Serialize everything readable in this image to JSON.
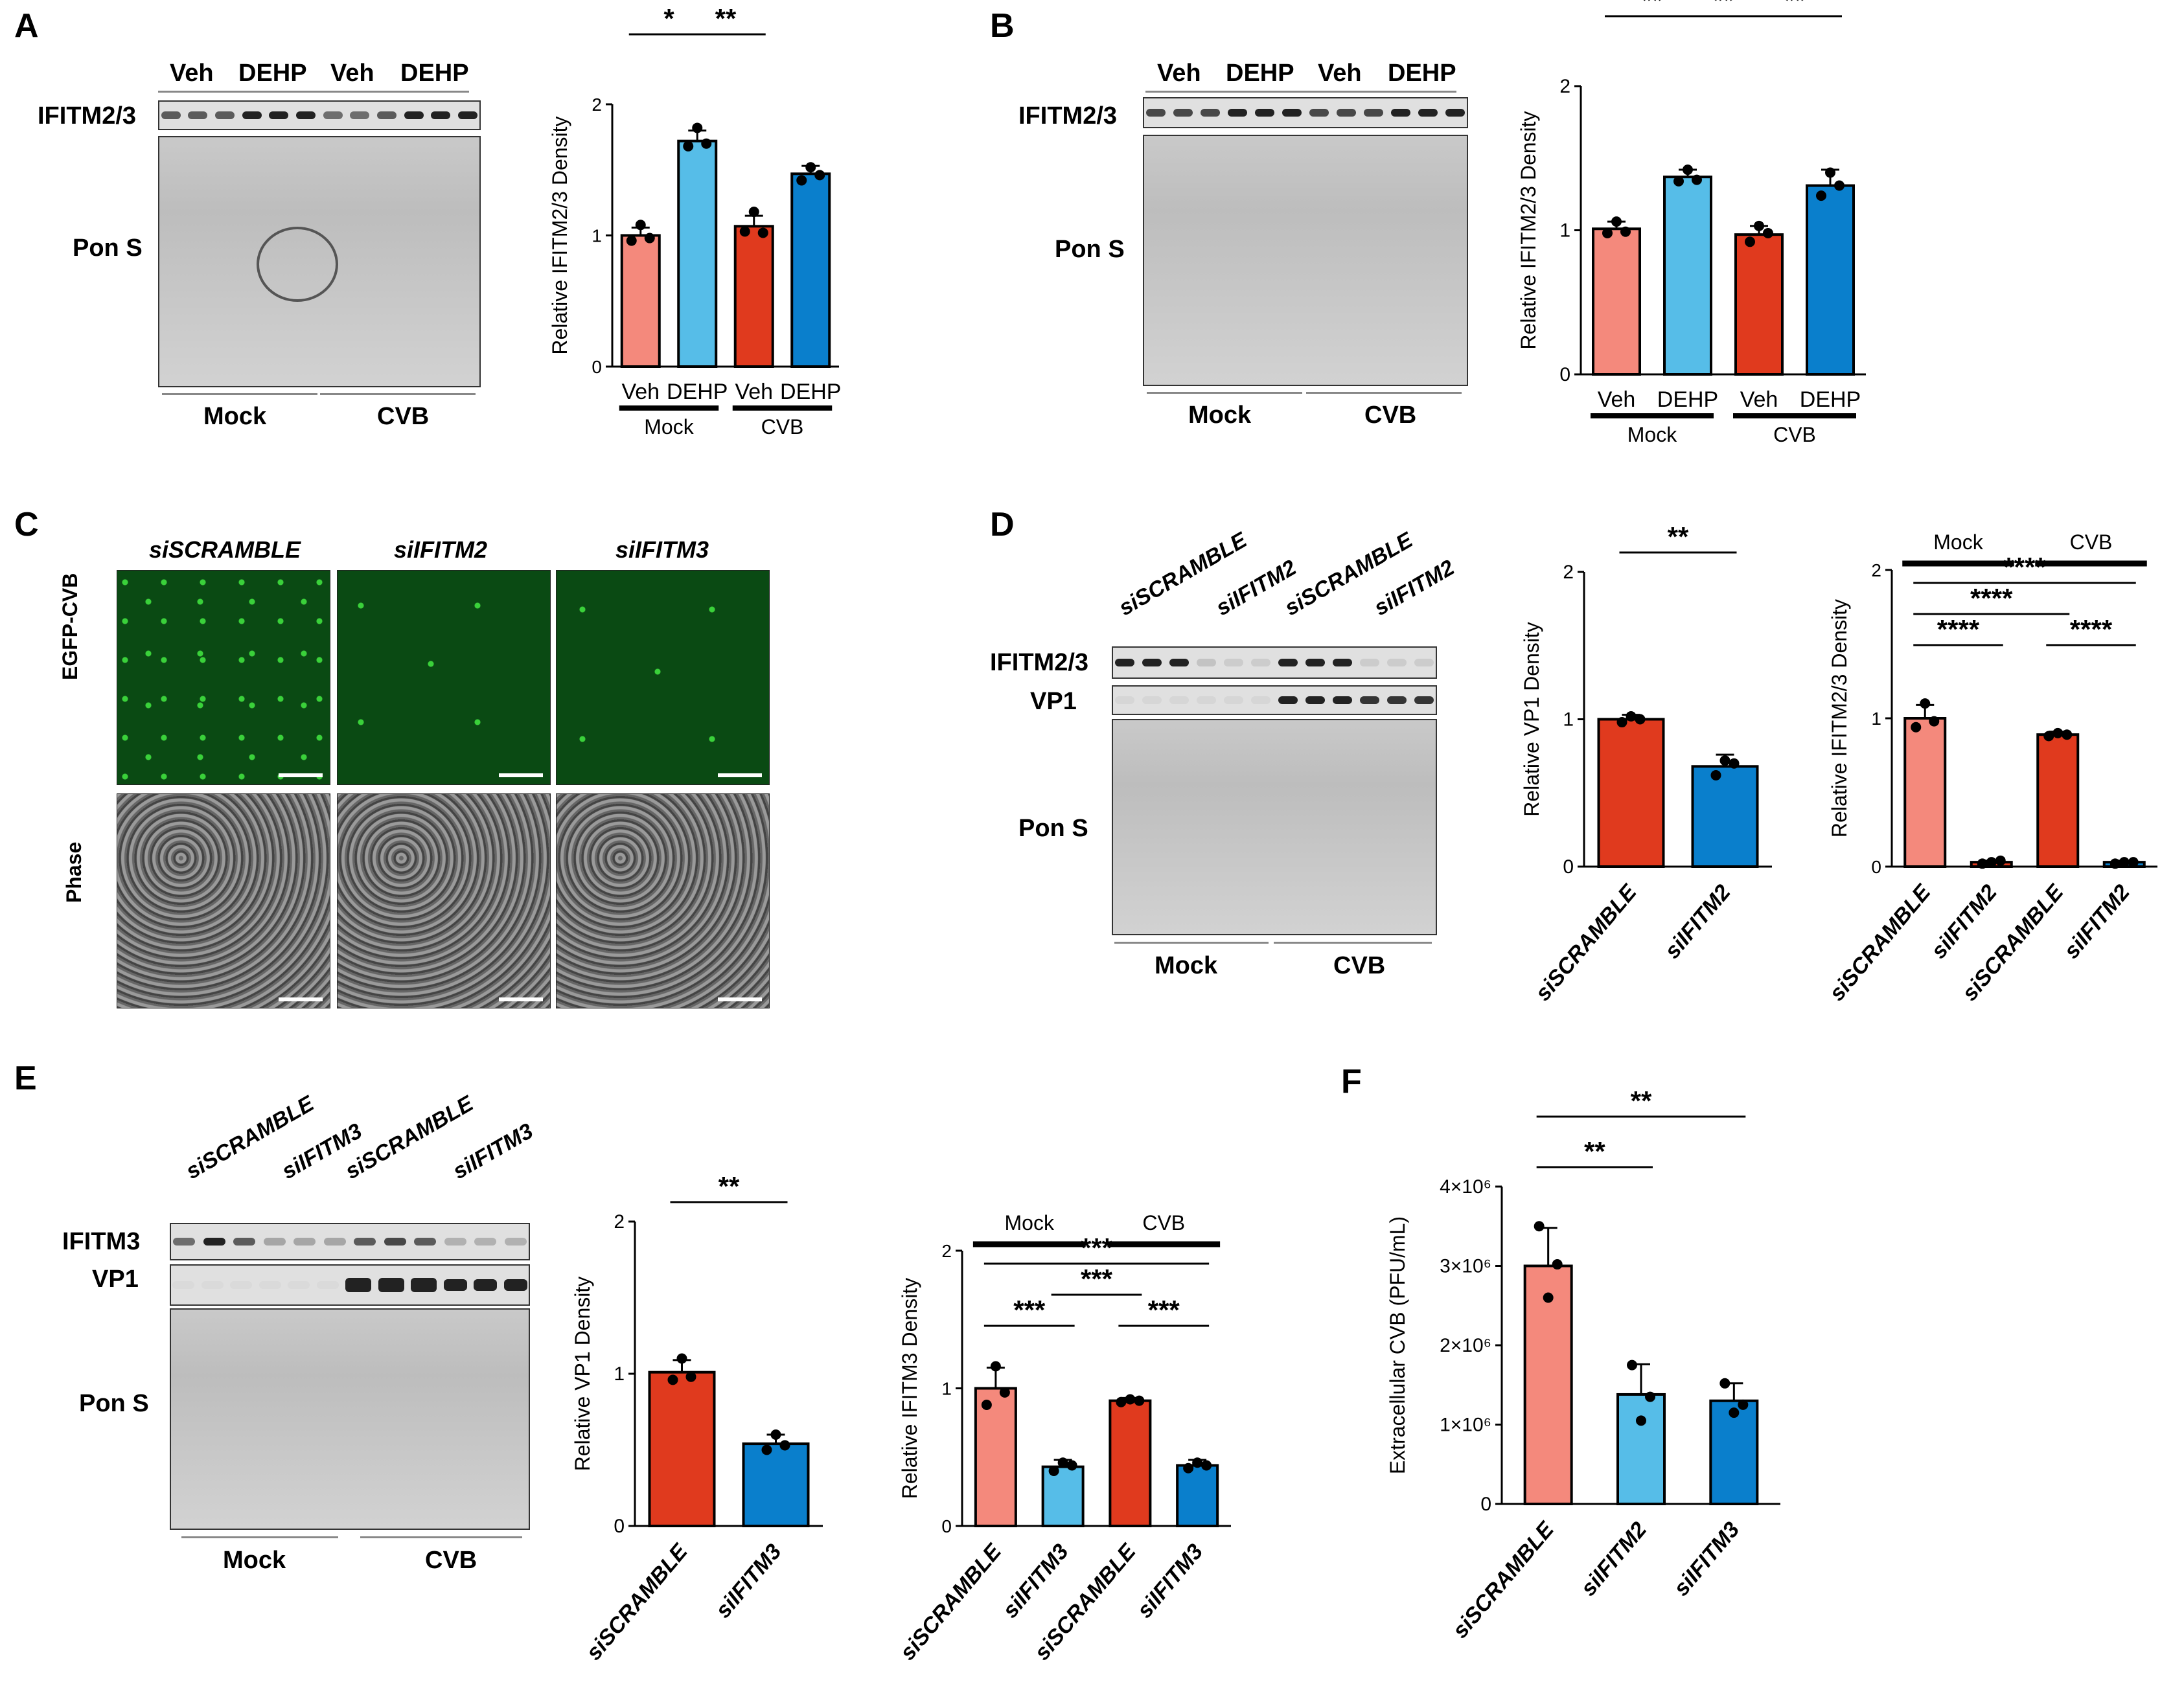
{
  "panels": {
    "A": {
      "letter": "A"
    },
    "B": {
      "letter": "B"
    },
    "C": {
      "letter": "C"
    },
    "D": {
      "letter": "D"
    },
    "E": {
      "letter": "E"
    },
    "F": {
      "letter": "F"
    }
  },
  "blots": {
    "A": {
      "top_labels": [
        "Veh",
        "DEHP",
        "Veh",
        "DEHP"
      ],
      "rows": [
        "IFITM2/3",
        "Pon S"
      ],
      "bottom": [
        "Mock",
        "CVB"
      ]
    },
    "B": {
      "top_labels": [
        "Veh",
        "DEHP",
        "Veh",
        "DEHP"
      ],
      "rows": [
        "IFITM2/3",
        "Pon S"
      ],
      "bottom": [
        "Mock",
        "CVB"
      ]
    },
    "D": {
      "top_labels": [
        "siSCRAMBLE",
        "siIFITM2",
        "siSCRAMBLE",
        "siIFITM2"
      ],
      "rows": [
        "IFITM2/3",
        "VP1",
        "Pon S"
      ],
      "bottom": [
        "Mock",
        "CVB"
      ]
    },
    "E": {
      "top_labels": [
        "siSCRAMBLE",
        "siIFITM3",
        "siSCRAMBLE",
        "siIFITM3"
      ],
      "rows": [
        "IFITM3",
        "VP1",
        "Pon S"
      ],
      "bottom": [
        "Mock",
        "CVB"
      ]
    }
  },
  "microscopy": {
    "columns": [
      "siSCRAMBLE",
      "siIFITM2",
      "siIFITM3"
    ],
    "rows": [
      "EGFP-CVB",
      "Phase"
    ]
  },
  "colors": {
    "veh_mock": "#f4897c",
    "dehp_mock": "#56bde8",
    "veh_cvb": "#e03a1e",
    "dehp_cvb": "#0a7fcc",
    "si_scr_mock": "#f4897c",
    "si_scr_cvb": "#e03a1e",
    "si_kd": "#0a7fcc",
    "si_kd_light": "#56bde8"
  },
  "chart_data": [
    {
      "id": "A",
      "type": "bar",
      "categories": [
        "Veh",
        "DEHP",
        "Veh",
        "DEHP"
      ],
      "groups": [
        "Mock",
        "CVB"
      ],
      "values": [
        1.0,
        1.72,
        1.07,
        1.47
      ],
      "errors": [
        0.06,
        0.08,
        0.08,
        0.06
      ],
      "points": [
        [
          0.96,
          1.08,
          0.98
        ],
        [
          1.68,
          1.82,
          1.7
        ],
        [
          1.03,
          1.18,
          1.02
        ],
        [
          1.42,
          1.52,
          1.46
        ]
      ],
      "ylabel": "Relative IFITM2/3 Density",
      "ylim": [
        0,
        2
      ],
      "yticks": [
        0,
        1,
        2
      ],
      "colors": [
        "#f4897c",
        "#56bde8",
        "#e03a1e",
        "#0a7fcc"
      ],
      "sig": [
        {
          "from": 0,
          "to": 3,
          "label": "****",
          "level": 3
        },
        {
          "from": 0,
          "to": 1,
          "label": "*",
          "level": 2
        },
        {
          "from": 1,
          "to": 2,
          "label": "**",
          "level": 2
        }
      ]
    },
    {
      "id": "B",
      "type": "bar",
      "categories": [
        "Veh",
        "DEHP",
        "Veh",
        "DEHP"
      ],
      "groups": [
        "Mock",
        "CVB"
      ],
      "values": [
        1.01,
        1.37,
        0.97,
        1.31
      ],
      "errors": [
        0.05,
        0.05,
        0.06,
        0.11
      ],
      "points": [
        [
          0.98,
          1.06,
          0.99
        ],
        [
          1.34,
          1.42,
          1.35
        ],
        [
          0.92,
          1.03,
          0.98
        ],
        [
          1.24,
          1.4,
          1.31
        ]
      ],
      "ylabel": "Relative IFITM2/3 Density",
      "ylim": [
        0,
        2
      ],
      "yticks": [
        0,
        1,
        2
      ],
      "colors": [
        "#f4897c",
        "#56bde8",
        "#e03a1e",
        "#0a7fcc"
      ],
      "sig": [
        {
          "from": 0,
          "to": 3,
          "label": "**",
          "level": 3
        },
        {
          "from": 0,
          "to": 1,
          "label": "**",
          "level": 2
        },
        {
          "from": 1,
          "to": 2,
          "label": "**",
          "level": 2
        },
        {
          "from": 2,
          "to": 3,
          "label": "**",
          "level": 2
        }
      ]
    },
    {
      "id": "D1",
      "type": "bar",
      "categories": [
        "siSCRAMBLE",
        "siIFITM2"
      ],
      "values": [
        1.0,
        0.68
      ],
      "errors": [
        0.03,
        0.08
      ],
      "points": [
        [
          0.98,
          1.02,
          1.0
        ],
        [
          0.62,
          0.72,
          0.7
        ]
      ],
      "ylabel": "Relative VP1 Density",
      "ylim": [
        0,
        2
      ],
      "yticks": [
        0,
        1,
        2
      ],
      "colors": [
        "#e03a1e",
        "#0a7fcc"
      ],
      "sig": [
        {
          "from": 0,
          "to": 1,
          "label": "**",
          "level": 1
        }
      ]
    },
    {
      "id": "D2",
      "type": "bar",
      "categories": [
        "siSCRAMBLE",
        "siIFITM2",
        "siSCRAMBLE",
        "siIFITM2"
      ],
      "groups": [
        "Mock",
        "CVB"
      ],
      "values": [
        1.0,
        0.03,
        0.89,
        0.03
      ],
      "errors": [
        0.09,
        0.01,
        0.02,
        0.01
      ],
      "points": [
        [
          0.94,
          1.1,
          0.98
        ],
        [
          0.02,
          0.03,
          0.04
        ],
        [
          0.88,
          0.9,
          0.89
        ],
        [
          0.02,
          0.03,
          0.03
        ]
      ],
      "ylabel": "Relative IFITM2/3 Density",
      "ylim": [
        0,
        2
      ],
      "yticks": [
        0,
        1,
        2
      ],
      "colors": [
        "#f4897c",
        "#e03a1e",
        "#e03a1e",
        "#0a7fcc"
      ],
      "sig": [
        {
          "from": 0,
          "to": 3,
          "label": "****",
          "level": 3
        },
        {
          "from": 0,
          "to": 2,
          "label": "****",
          "level": 2
        },
        {
          "from": 0,
          "to": 1,
          "label": "****",
          "level": 1
        },
        {
          "from": 2,
          "to": 3,
          "label": "****",
          "level": 1
        }
      ]
    },
    {
      "id": "E1",
      "type": "bar",
      "categories": [
        "siSCRAMBLE",
        "siIFITM3"
      ],
      "values": [
        1.01,
        0.54
      ],
      "errors": [
        0.08,
        0.06
      ],
      "points": [
        [
          0.96,
          1.1,
          0.98
        ],
        [
          0.5,
          0.6,
          0.53
        ]
      ],
      "ylabel": "Relative VP1 Density",
      "ylim": [
        0,
        2
      ],
      "yticks": [
        0,
        1,
        2
      ],
      "colors": [
        "#e03a1e",
        "#0a7fcc"
      ],
      "sig": [
        {
          "from": 0,
          "to": 1,
          "label": "**",
          "level": 1
        }
      ]
    },
    {
      "id": "E2",
      "type": "bar",
      "categories": [
        "siSCRAMBLE",
        "siIFITM3",
        "siSCRAMBLE",
        "siIFITM3"
      ],
      "groups": [
        "Mock",
        "CVB"
      ],
      "values": [
        1.0,
        0.43,
        0.91,
        0.44
      ],
      "errors": [
        0.15,
        0.05,
        0.02,
        0.04
      ],
      "points": [
        [
          0.88,
          1.16,
          0.97
        ],
        [
          0.4,
          0.46,
          0.44
        ],
        [
          0.9,
          0.92,
          0.91
        ],
        [
          0.42,
          0.46,
          0.44
        ]
      ],
      "ylabel": "Relative IFITM3 Density",
      "ylim": [
        0,
        2
      ],
      "yticks": [
        0,
        1,
        2
      ],
      "colors": [
        "#f4897c",
        "#56bde8",
        "#e03a1e",
        "#0a7fcc"
      ],
      "sig": [
        {
          "from": 0,
          "to": 3,
          "label": "***",
          "level": 3
        },
        {
          "from": 1,
          "to": 2,
          "label": "***",
          "level": 2
        },
        {
          "from": 0,
          "to": 1,
          "label": "***",
          "level": 1
        },
        {
          "from": 2,
          "to": 3,
          "label": "***",
          "level": 1
        }
      ]
    },
    {
      "id": "F",
      "type": "bar",
      "categories": [
        "siSCRAMBLE",
        "siIFITM2",
        "siIFITM3"
      ],
      "values": [
        3000000,
        1380000,
        1300000
      ],
      "errors": [
        480000,
        380000,
        220000
      ],
      "points": [
        [
          3500000,
          2600000,
          3020000
        ],
        [
          1750000,
          1050000,
          1350000
        ],
        [
          1520000,
          1150000,
          1250000
        ]
      ],
      "ylabel": "Extracellular CVB (PFU/mL)",
      "ylim": [
        0,
        4000000
      ],
      "yticks": [
        0,
        1000000,
        2000000,
        3000000,
        4000000
      ],
      "yticklabels": [
        "0",
        "1×10⁶",
        "2×10⁶",
        "3×10⁶",
        "4×10⁶"
      ],
      "colors": [
        "#f4897c",
        "#56bde8",
        "#0a7fcc"
      ],
      "sig": [
        {
          "from": 0,
          "to": 2,
          "label": "**",
          "level": 2
        },
        {
          "from": 0,
          "to": 1,
          "label": "**",
          "level": 1
        }
      ]
    }
  ]
}
